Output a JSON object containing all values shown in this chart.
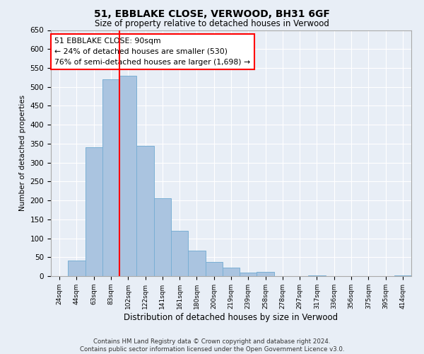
{
  "title1": "51, EBBLAKE CLOSE, VERWOOD, BH31 6GF",
  "title2": "Size of property relative to detached houses in Verwood",
  "xlabel": "Distribution of detached houses by size in Verwood",
  "ylabel": "Number of detached properties",
  "bar_labels": [
    "24sqm",
    "44sqm",
    "63sqm",
    "83sqm",
    "102sqm",
    "122sqm",
    "141sqm",
    "161sqm",
    "180sqm",
    "200sqm",
    "219sqm",
    "239sqm",
    "258sqm",
    "278sqm",
    "297sqm",
    "317sqm",
    "336sqm",
    "356sqm",
    "375sqm",
    "395sqm",
    "414sqm"
  ],
  "bar_values": [
    0,
    42,
    340,
    520,
    530,
    345,
    205,
    120,
    67,
    37,
    22,
    10,
    12,
    0,
    0,
    2,
    0,
    0,
    0,
    0,
    2
  ],
  "bar_color": "#aac4e0",
  "bar_edge_color": "#7aafd4",
  "vline_x": 3.5,
  "vline_color": "red",
  "annotation_text": "51 EBBLAKE CLOSE: 90sqm\n← 24% of detached houses are smaller (530)\n76% of semi-detached houses are larger (1,698) →",
  "annotation_box_color": "white",
  "annotation_box_edge_color": "red",
  "ylim": [
    0,
    650
  ],
  "yticks": [
    0,
    50,
    100,
    150,
    200,
    250,
    300,
    350,
    400,
    450,
    500,
    550,
    600,
    650
  ],
  "footer": "Contains HM Land Registry data © Crown copyright and database right 2024.\nContains public sector information licensed under the Open Government Licence v3.0.",
  "bg_color": "#e8eef6",
  "grid_color": "white"
}
